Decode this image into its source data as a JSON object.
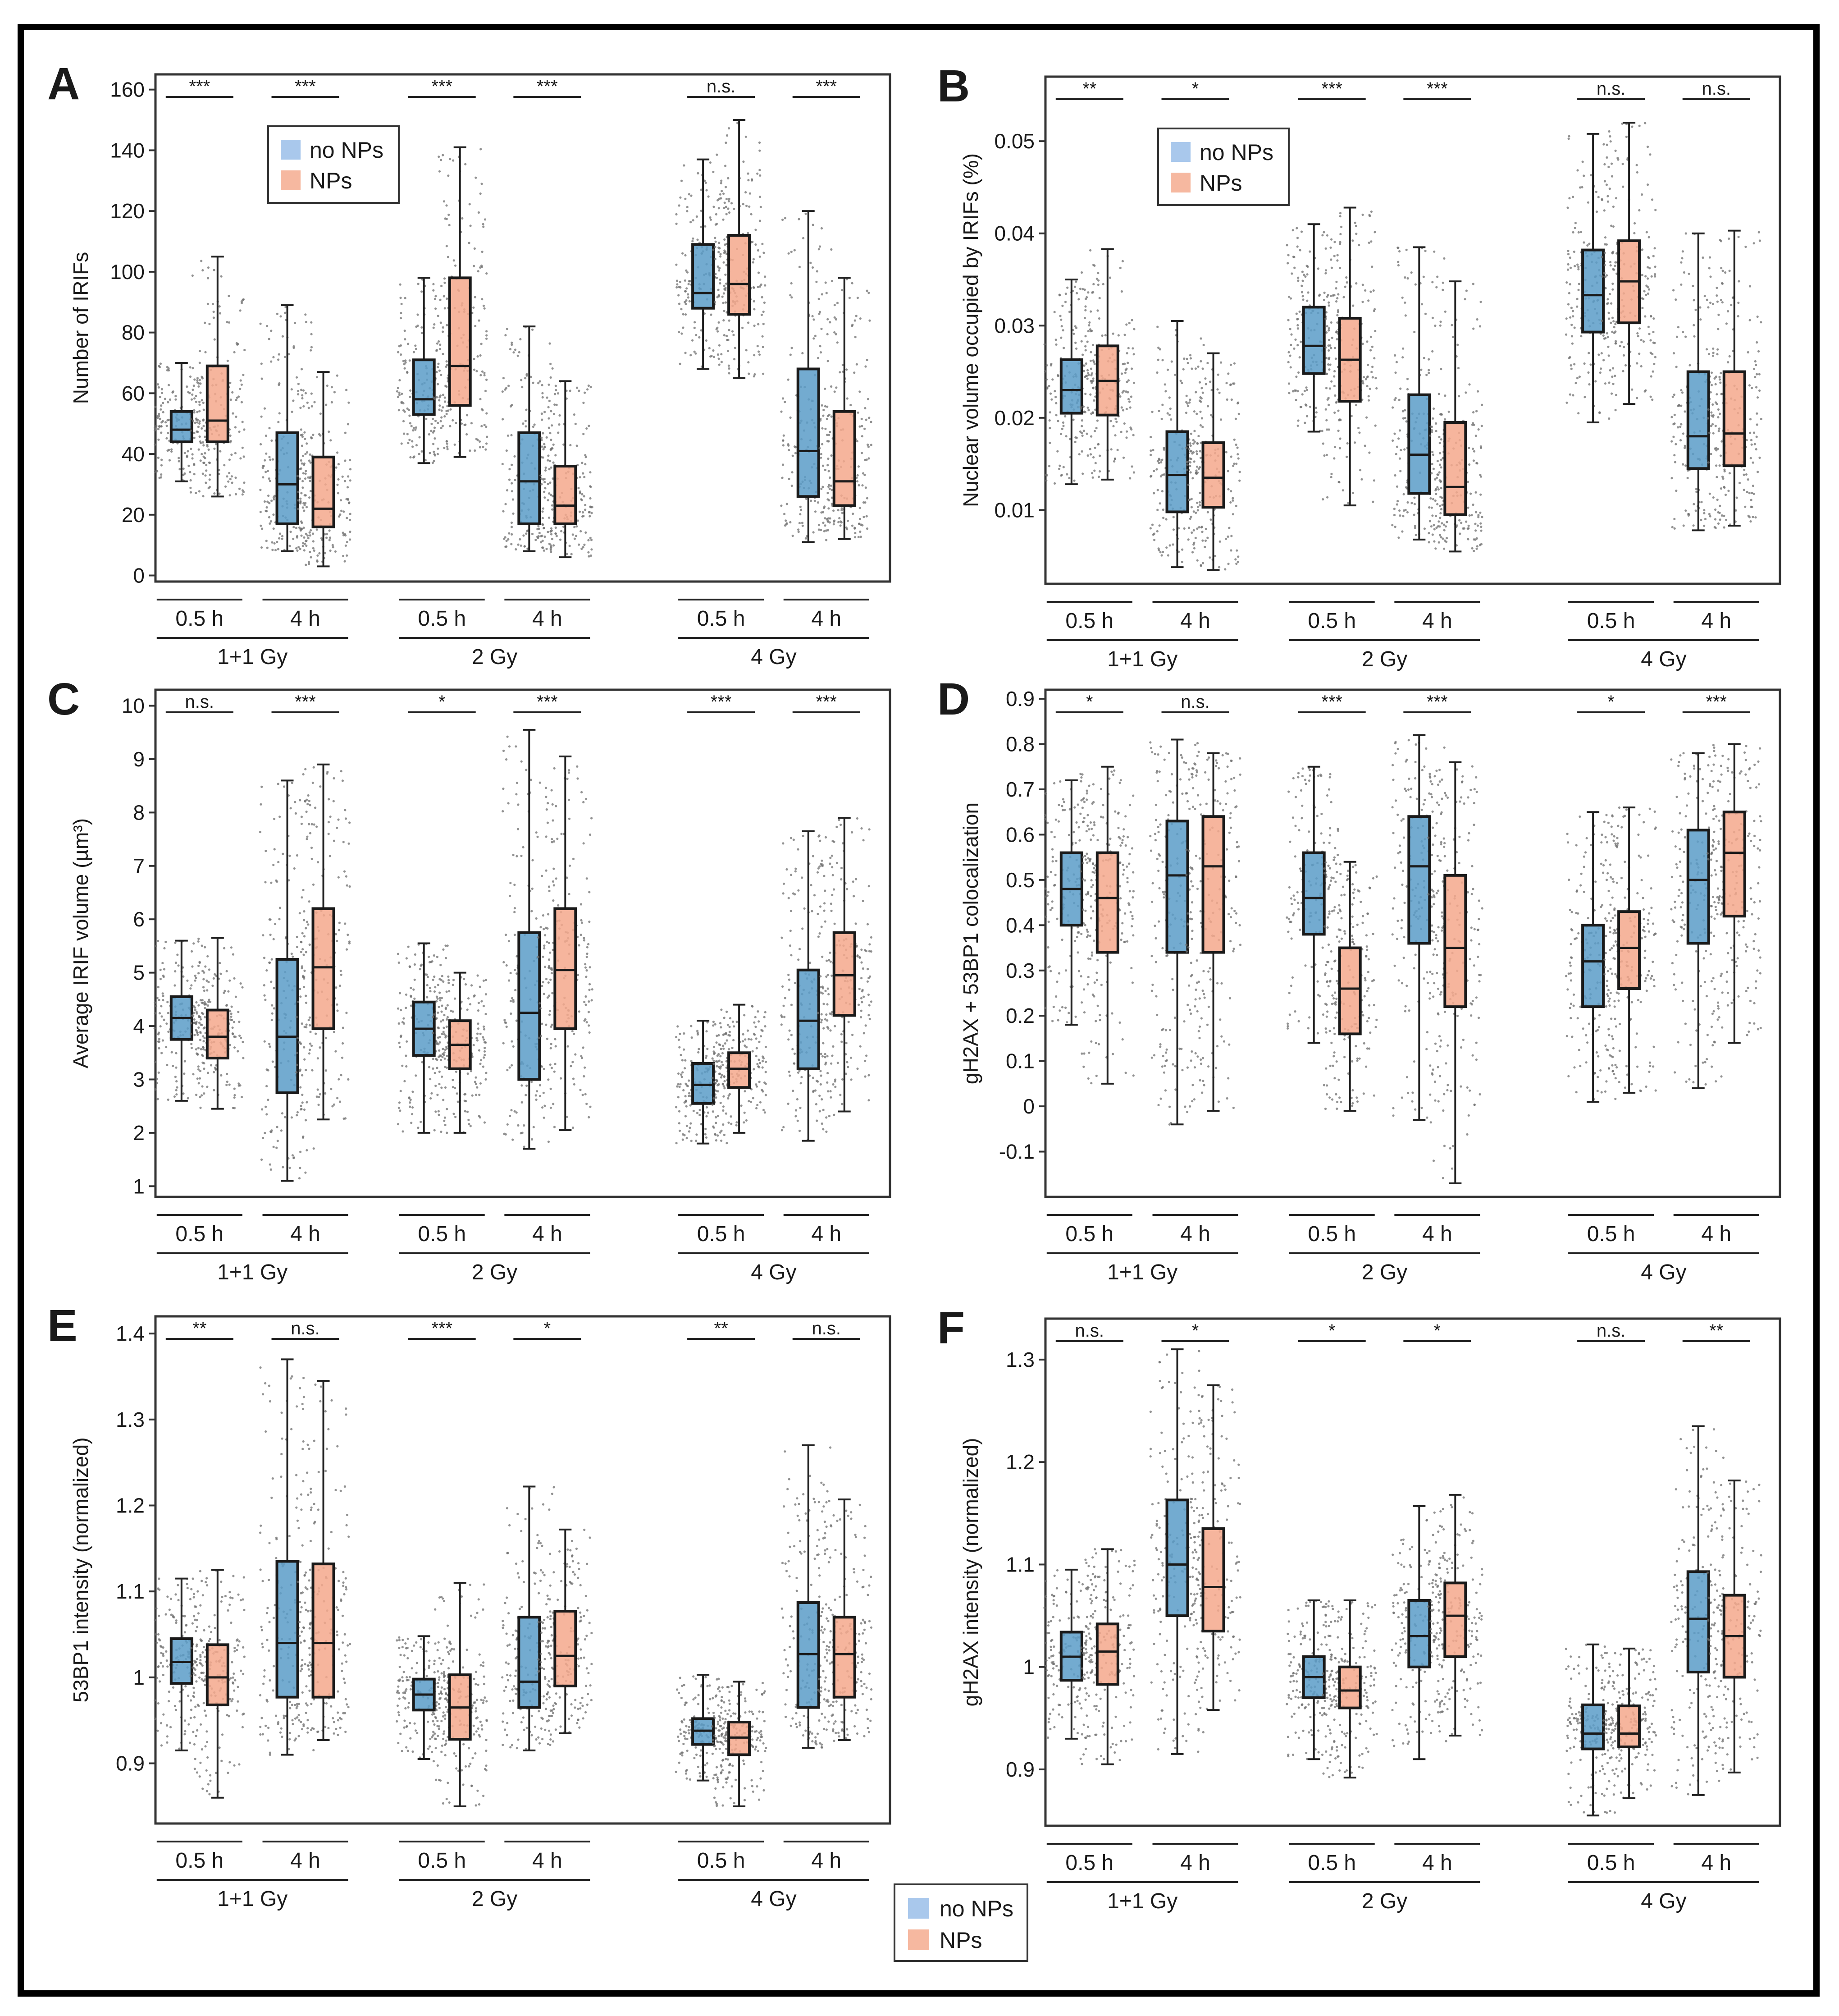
{
  "colors": {
    "no_nps_box": "#5a9cc8",
    "nps_box": "#f4a88c",
    "legend_no_nps": "#a9c8ec",
    "legend_nps": "#f6b8a0",
    "frame": "#000000",
    "axis": "#555555"
  },
  "legend": {
    "no_nps": "no NPs",
    "nps": "NPs"
  },
  "groups": {
    "times": [
      "0.5 h",
      "4 h",
      "0.5 h",
      "4 h",
      "0.5 h",
      "4 h"
    ],
    "doses": [
      "1+1 Gy",
      "2 Gy",
      "4 Gy"
    ]
  },
  "chart_data": [
    {
      "panel": "A",
      "type": "box",
      "ylabel": "Number of IRIFs",
      "yticks": [
        0,
        20,
        40,
        60,
        80,
        100,
        120,
        140,
        160
      ],
      "ylim": [
        -2,
        165
      ],
      "significance": [
        "***",
        "***",
        "***",
        "***",
        "n.s.",
        "***"
      ],
      "legend_in_panel": true,
      "series": [
        {
          "name": "no NPs",
          "boxes": [
            {
              "min": 31,
              "q1": 44,
              "median": 48,
              "q3": 54,
              "max": 70
            },
            {
              "min": 8,
              "q1": 17,
              "median": 30,
              "q3": 47,
              "max": 89
            },
            {
              "min": 37,
              "q1": 53,
              "median": 58,
              "q3": 71,
              "max": 98
            },
            {
              "min": 8,
              "q1": 17,
              "median": 31,
              "q3": 47,
              "max": 82
            },
            {
              "min": 68,
              "q1": 88,
              "median": 93,
              "q3": 109,
              "max": 137
            },
            {
              "min": 11,
              "q1": 26,
              "median": 41,
              "q3": 68,
              "max": 120
            }
          ]
        },
        {
          "name": "NPs",
          "boxes": [
            {
              "min": 26,
              "q1": 44,
              "median": 51,
              "q3": 69,
              "max": 105
            },
            {
              "min": 3,
              "q1": 16,
              "median": 22,
              "q3": 39,
              "max": 67
            },
            {
              "min": 39,
              "q1": 56,
              "median": 69,
              "q3": 98,
              "max": 141
            },
            {
              "min": 6,
              "q1": 17,
              "median": 23,
              "q3": 36,
              "max": 64
            },
            {
              "min": 65,
              "q1": 86,
              "median": 96,
              "q3": 112,
              "max": 150
            },
            {
              "min": 12,
              "q1": 23,
              "median": 31,
              "q3": 54,
              "max": 98
            }
          ]
        }
      ]
    },
    {
      "panel": "B",
      "type": "box",
      "ylabel": "Nuclear volume occupied by IRIFs (%)",
      "yticks": [
        0.01,
        0.02,
        0.03,
        0.04,
        0.05
      ],
      "ylim": [
        0.002,
        0.057
      ],
      "significance": [
        "**",
        "*",
        "***",
        "***",
        "n.s.",
        "n.s."
      ],
      "legend_in_panel": true,
      "series": [
        {
          "name": "no NPs",
          "boxes": [
            {
              "min": 0.0128,
              "q1": 0.0205,
              "median": 0.023,
              "q3": 0.0263,
              "max": 0.035
            },
            {
              "min": 0.0038,
              "q1": 0.0098,
              "median": 0.0138,
              "q3": 0.0185,
              "max": 0.0305
            },
            {
              "min": 0.0185,
              "q1": 0.0248,
              "median": 0.0278,
              "q3": 0.032,
              "max": 0.041
            },
            {
              "min": 0.0068,
              "q1": 0.0118,
              "median": 0.016,
              "q3": 0.0225,
              "max": 0.0385
            },
            {
              "min": 0.0195,
              "q1": 0.0293,
              "median": 0.0333,
              "q3": 0.0382,
              "max": 0.0508
            },
            {
              "min": 0.0078,
              "q1": 0.0145,
              "median": 0.018,
              "q3": 0.025,
              "max": 0.04
            }
          ]
        },
        {
          "name": "NPs",
          "boxes": [
            {
              "min": 0.0133,
              "q1": 0.0203,
              "median": 0.024,
              "q3": 0.0278,
              "max": 0.0383
            },
            {
              "min": 0.0035,
              "q1": 0.0103,
              "median": 0.0135,
              "q3": 0.0173,
              "max": 0.027
            },
            {
              "min": 0.0105,
              "q1": 0.0218,
              "median": 0.0263,
              "q3": 0.0308,
              "max": 0.0428
            },
            {
              "min": 0.0055,
              "q1": 0.0095,
              "median": 0.0125,
              "q3": 0.0195,
              "max": 0.0348
            },
            {
              "min": 0.0215,
              "q1": 0.0303,
              "median": 0.0348,
              "q3": 0.0392,
              "max": 0.052
            },
            {
              "min": 0.0083,
              "q1": 0.0148,
              "median": 0.0183,
              "q3": 0.025,
              "max": 0.0403
            }
          ]
        }
      ]
    },
    {
      "panel": "C",
      "type": "box",
      "ylabel": "Average IRIF volume (µm³)",
      "yticks": [
        1,
        2,
        3,
        4,
        5,
        6,
        7,
        8,
        9,
        10
      ],
      "ylim": [
        0.8,
        10.3
      ],
      "significance": [
        "n.s.",
        "***",
        "*",
        "***",
        "***",
        "***"
      ],
      "legend_in_panel": false,
      "series": [
        {
          "name": "no NPs",
          "boxes": [
            {
              "min": 2.6,
              "q1": 3.75,
              "median": 4.15,
              "q3": 4.55,
              "max": 5.6
            },
            {
              "min": 1.1,
              "q1": 2.75,
              "median": 3.8,
              "q3": 5.25,
              "max": 8.6
            },
            {
              "min": 2.0,
              "q1": 3.45,
              "median": 3.95,
              "q3": 4.45,
              "max": 5.55
            },
            {
              "min": 1.7,
              "q1": 3.0,
              "median": 4.25,
              "q3": 5.75,
              "max": 9.55
            },
            {
              "min": 1.8,
              "q1": 2.55,
              "median": 2.9,
              "q3": 3.3,
              "max": 4.1
            },
            {
              "min": 1.85,
              "q1": 3.2,
              "median": 4.1,
              "q3": 5.05,
              "max": 7.65
            }
          ]
        },
        {
          "name": "NPs",
          "boxes": [
            {
              "min": 2.45,
              "q1": 3.4,
              "median": 3.8,
              "q3": 4.3,
              "max": 5.65
            },
            {
              "min": 2.25,
              "q1": 3.95,
              "median": 5.1,
              "q3": 6.2,
              "max": 8.9
            },
            {
              "min": 2.0,
              "q1": 3.2,
              "median": 3.65,
              "q3": 4.1,
              "max": 5.0
            },
            {
              "min": 2.05,
              "q1": 3.95,
              "median": 5.05,
              "q3": 6.2,
              "max": 9.05
            },
            {
              "min": 2.0,
              "q1": 2.85,
              "median": 3.2,
              "q3": 3.5,
              "max": 4.4
            },
            {
              "min": 2.4,
              "q1": 4.2,
              "median": 4.95,
              "q3": 5.75,
              "max": 7.9
            }
          ]
        }
      ]
    },
    {
      "panel": "D",
      "type": "box",
      "ylabel": "gH2AX + 53BP1 colocalization",
      "yticks": [
        -0.1,
        0,
        0.1,
        0.2,
        0.3,
        0.4,
        0.5,
        0.6,
        0.7,
        0.8,
        0.9
      ],
      "ylim": [
        -0.2,
        0.92
      ],
      "significance": [
        "*",
        "n.s.",
        "***",
        "***",
        "*",
        "***"
      ],
      "legend_in_panel": false,
      "series": [
        {
          "name": "no NPs",
          "boxes": [
            {
              "min": 0.18,
              "q1": 0.4,
              "median": 0.48,
              "q3": 0.56,
              "max": 0.72
            },
            {
              "min": -0.04,
              "q1": 0.34,
              "median": 0.51,
              "q3": 0.63,
              "max": 0.81
            },
            {
              "min": 0.14,
              "q1": 0.38,
              "median": 0.46,
              "q3": 0.56,
              "max": 0.75
            },
            {
              "min": -0.03,
              "q1": 0.36,
              "median": 0.53,
              "q3": 0.64,
              "max": 0.82
            },
            {
              "min": 0.01,
              "q1": 0.22,
              "median": 0.32,
              "q3": 0.4,
              "max": 0.65
            },
            {
              "min": 0.04,
              "q1": 0.36,
              "median": 0.5,
              "q3": 0.61,
              "max": 0.78
            }
          ]
        },
        {
          "name": "NPs",
          "boxes": [
            {
              "min": 0.05,
              "q1": 0.34,
              "median": 0.46,
              "q3": 0.56,
              "max": 0.75
            },
            {
              "min": -0.01,
              "q1": 0.34,
              "median": 0.53,
              "q3": 0.64,
              "max": 0.78
            },
            {
              "min": -0.01,
              "q1": 0.16,
              "median": 0.26,
              "q3": 0.35,
              "max": 0.54
            },
            {
              "min": -0.17,
              "q1": 0.22,
              "median": 0.35,
              "q3": 0.51,
              "max": 0.76
            },
            {
              "min": 0.03,
              "q1": 0.26,
              "median": 0.35,
              "q3": 0.43,
              "max": 0.66
            },
            {
              "min": 0.14,
              "q1": 0.42,
              "median": 0.56,
              "q3": 0.65,
              "max": 0.8
            }
          ]
        }
      ]
    },
    {
      "panel": "E",
      "type": "box",
      "ylabel": "53BP1 intensity (normalized)",
      "yticks": [
        0.9,
        1,
        1.1,
        1.2,
        1.3,
        1.4
      ],
      "ylim": [
        0.83,
        1.42
      ],
      "significance": [
        "**",
        "n.s.",
        "***",
        "*",
        "**",
        "n.s."
      ],
      "legend_in_panel": false,
      "series": [
        {
          "name": "no NPs",
          "boxes": [
            {
              "min": 0.915,
              "q1": 0.993,
              "median": 1.018,
              "q3": 1.045,
              "max": 1.115
            },
            {
              "min": 0.91,
              "q1": 0.977,
              "median": 1.04,
              "q3": 1.135,
              "max": 1.37
            },
            {
              "min": 0.905,
              "q1": 0.962,
              "median": 0.98,
              "q3": 0.998,
              "max": 1.048
            },
            {
              "min": 0.915,
              "q1": 0.965,
              "median": 0.995,
              "q3": 1.07,
              "max": 1.222
            },
            {
              "min": 0.88,
              "q1": 0.922,
              "median": 0.938,
              "q3": 0.952,
              "max": 1.003
            },
            {
              "min": 0.918,
              "q1": 0.965,
              "median": 1.027,
              "q3": 1.087,
              "max": 1.27
            }
          ]
        },
        {
          "name": "NPs",
          "boxes": [
            {
              "min": 0.86,
              "q1": 0.968,
              "median": 1.0,
              "q3": 1.038,
              "max": 1.125
            },
            {
              "min": 0.927,
              "q1": 0.977,
              "median": 1.04,
              "q3": 1.132,
              "max": 1.345
            },
            {
              "min": 0.85,
              "q1": 0.928,
              "median": 0.965,
              "q3": 1.003,
              "max": 1.11
            },
            {
              "min": 0.935,
              "q1": 0.99,
              "median": 1.025,
              "q3": 1.077,
              "max": 1.172
            },
            {
              "min": 0.85,
              "q1": 0.91,
              "median": 0.93,
              "q3": 0.948,
              "max": 0.995
            },
            {
              "min": 0.927,
              "q1": 0.977,
              "median": 1.027,
              "q3": 1.07,
              "max": 1.207
            }
          ]
        }
      ]
    },
    {
      "panel": "F",
      "type": "box",
      "ylabel": "gH2AX intensity (normalized)",
      "yticks": [
        0.9,
        1,
        1.1,
        1.2,
        1.3
      ],
      "ylim": [
        0.845,
        1.34
      ],
      "significance": [
        "n.s.",
        "*",
        "*",
        "*",
        "n.s.",
        "**"
      ],
      "legend_in_panel": false,
      "series": [
        {
          "name": "no NPs",
          "boxes": [
            {
              "min": 0.93,
              "q1": 0.987,
              "median": 1.01,
              "q3": 1.034,
              "max": 1.095
            },
            {
              "min": 0.915,
              "q1": 1.05,
              "median": 1.1,
              "q3": 1.163,
              "max": 1.31
            },
            {
              "min": 0.91,
              "q1": 0.97,
              "median": 0.99,
              "q3": 1.01,
              "max": 1.065
            },
            {
              "min": 0.91,
              "q1": 1.0,
              "median": 1.03,
              "q3": 1.065,
              "max": 1.157
            },
            {
              "min": 0.855,
              "q1": 0.92,
              "median": 0.935,
              "q3": 0.963,
              "max": 1.022
            },
            {
              "min": 0.875,
              "q1": 0.995,
              "median": 1.047,
              "q3": 1.093,
              "max": 1.235
            }
          ]
        },
        {
          "name": "NPs",
          "boxes": [
            {
              "min": 0.905,
              "q1": 0.983,
              "median": 1.015,
              "q3": 1.042,
              "max": 1.115
            },
            {
              "min": 0.958,
              "q1": 1.035,
              "median": 1.078,
              "q3": 1.135,
              "max": 1.275
            },
            {
              "min": 0.892,
              "q1": 0.96,
              "median": 0.977,
              "q3": 1.0,
              "max": 1.065
            },
            {
              "min": 0.933,
              "q1": 1.01,
              "median": 1.05,
              "q3": 1.082,
              "max": 1.168
            },
            {
              "min": 0.872,
              "q1": 0.922,
              "median": 0.935,
              "q3": 0.962,
              "max": 1.018
            },
            {
              "min": 0.897,
              "q1": 0.99,
              "median": 1.03,
              "q3": 1.07,
              "max": 1.182
            }
          ]
        }
      ]
    }
  ]
}
